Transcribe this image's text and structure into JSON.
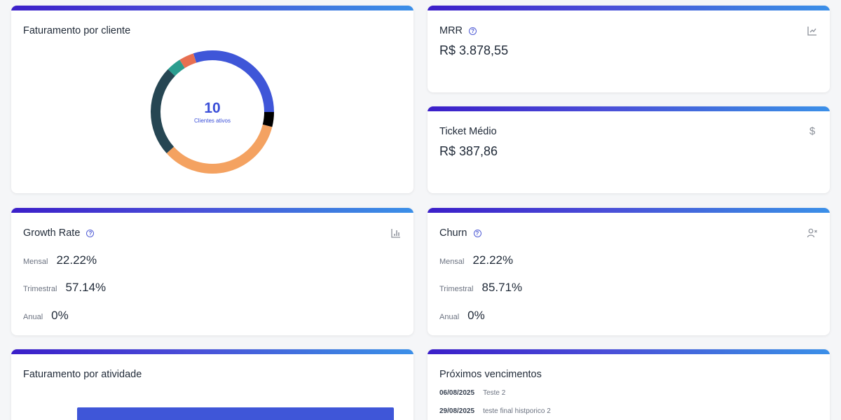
{
  "cards": {
    "faturamento_cliente": {
      "title": "Faturamento por cliente",
      "center_count": "10",
      "center_caption": "Clientes ativos"
    },
    "mrr": {
      "title": "MRR",
      "value": "R$ 3.878,55",
      "icon": "line-chart-icon"
    },
    "ticket_medio": {
      "title": "Ticket Médio",
      "value": "R$ 387,86",
      "icon": "dollar-icon"
    },
    "growth_rate": {
      "title": "Growth Rate",
      "icon": "bar-chart-icon",
      "rows": [
        {
          "label": "Mensal",
          "value": "22.22%"
        },
        {
          "label": "Trimestral",
          "value": "57.14%"
        },
        {
          "label": "Anual",
          "value": "0%"
        }
      ]
    },
    "churn": {
      "title": "Churn",
      "icon": "user-remove-icon",
      "rows": [
        {
          "label": "Mensal",
          "value": "22.22%"
        },
        {
          "label": "Trimestral",
          "value": "85.71%"
        },
        {
          "label": "Anual",
          "value": "0%"
        }
      ]
    },
    "faturamento_atividade": {
      "title": "Faturamento por atividade"
    },
    "proximos_vencimentos": {
      "title": "Próximos vencimentos",
      "items": [
        {
          "date": "06/08/2025",
          "description": "Teste 2"
        },
        {
          "date": "29/08/2025",
          "description": "teste final histporico 2"
        }
      ]
    }
  },
  "colors": {
    "accent": "#3b4fd8",
    "gradient_start": "#3b1fc9",
    "gradient_end": "#3b8fe8"
  },
  "chart_data": [
    {
      "type": "pie",
      "title": "Faturamento por cliente",
      "subtitle": "10 Clientes ativos",
      "donut": true,
      "values_unit": "percent_of_circle_estimated",
      "segments": [
        {
          "color": "#3f56d8",
          "value": 30.0
        },
        {
          "color": "#000000",
          "value": 3.9
        },
        {
          "color": "#f4a261",
          "value": 34.4
        },
        {
          "color": "#264653",
          "value": 23.9
        },
        {
          "color": "#2a9d8f",
          "value": 3.9
        },
        {
          "color": "#e76f51",
          "value": 3.9
        }
      ],
      "legend": "none visible"
    },
    {
      "type": "bar",
      "title": "Faturamento por atividade",
      "orientation": "horizontal",
      "categories": [
        ""
      ],
      "values": [
        null
      ],
      "note": "chart cut off at bottom edge; no labels visible"
    }
  ]
}
